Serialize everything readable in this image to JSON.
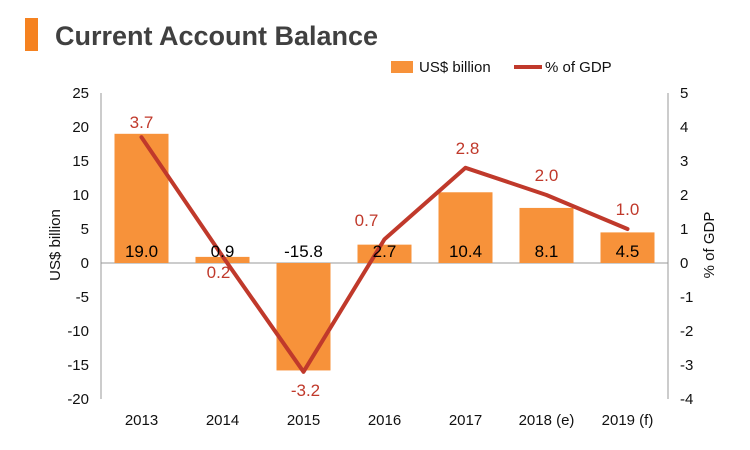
{
  "title": "Current Account Balance",
  "colors": {
    "accent": "#F58220",
    "bar": "#F7923A",
    "line": "#C0392B",
    "line_label": "#C0392B",
    "title": "#404040"
  },
  "legend": {
    "bar_label": "US$ billion",
    "line_label": "% of GDP"
  },
  "chart_data": {
    "type": "bar",
    "categories": [
      "2013",
      "2014",
      "2015",
      "2016",
      "2017",
      "2018 (e)",
      "2019 (f)"
    ],
    "series": [
      {
        "name": "US$ billion",
        "type": "bar",
        "axis": "left",
        "values": [
          19.0,
          0.9,
          -15.8,
          2.7,
          10.4,
          8.1,
          4.5
        ],
        "labels": [
          "19.0",
          "0.9",
          "-15.8",
          "2.7",
          "10.4",
          "8.1",
          "4.5"
        ]
      },
      {
        "name": "% of GDP",
        "type": "line",
        "axis": "right",
        "values": [
          3.7,
          0.2,
          -3.2,
          0.7,
          2.8,
          2.0,
          1.0
        ],
        "labels": [
          "3.7",
          "0.2",
          "-3.2",
          "0.7",
          "2.8",
          "2.0",
          "1.0"
        ]
      }
    ],
    "title": "Current Account Balance",
    "ylabel": "US$ billion",
    "y2label": "% of GDP",
    "ylim": [
      -20,
      25
    ],
    "y2lim": [
      -4,
      5
    ],
    "yticks": [
      "25",
      "20",
      "15",
      "10",
      "5",
      "0",
      "-5",
      "-10",
      "-15",
      "-20"
    ],
    "y2ticks": [
      "5",
      "4",
      "3",
      "2",
      "1",
      "0",
      "-1",
      "-2",
      "-3",
      "-4"
    ],
    "legend_position": "top-right",
    "grid": false
  }
}
